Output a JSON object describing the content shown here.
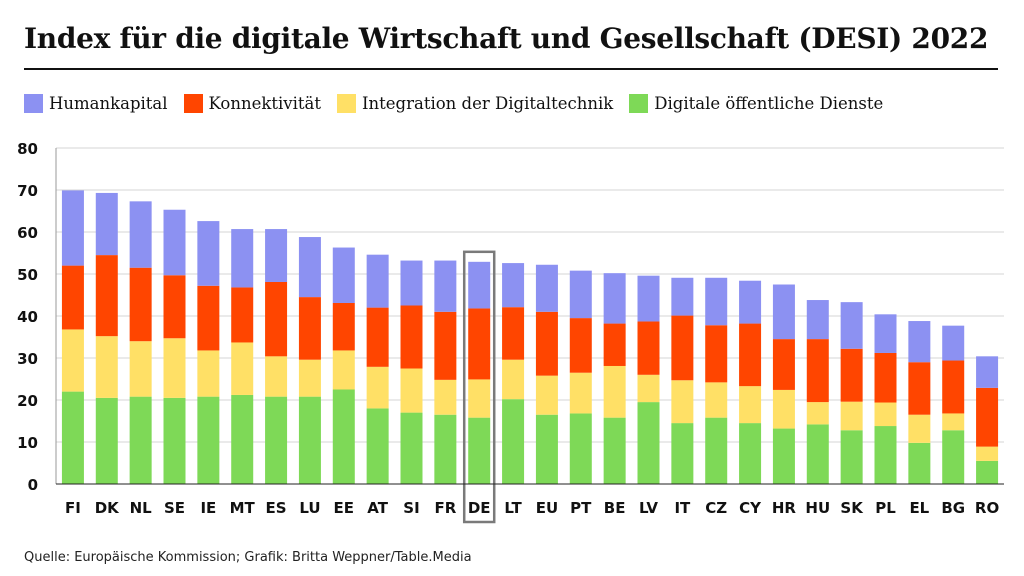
{
  "chart_data": {
    "type": "bar",
    "stacked": true,
    "title": "Index für die digitale Wirtschaft und Gesellschaft (DESI) 2022",
    "xlabel": "",
    "ylabel": "",
    "ylim": [
      0,
      80
    ],
    "yticks": [
      0,
      10,
      20,
      30,
      40,
      50,
      60,
      70,
      80
    ],
    "grid": true,
    "legend_position": "top",
    "highlight_category": "DE",
    "categories": [
      "FI",
      "DK",
      "NL",
      "SE",
      "IE",
      "MT",
      "ES",
      "LU",
      "EE",
      "AT",
      "SI",
      "FR",
      "DE",
      "LT",
      "EU",
      "PT",
      "BE",
      "LV",
      "IT",
      "CZ",
      "CY",
      "HR",
      "HU",
      "SK",
      "PL",
      "EL",
      "BG",
      "RO"
    ],
    "series": [
      {
        "name": "Digitale öffentliche Dienste",
        "color": "#7ed957",
        "values": [
          22.0,
          20.5,
          20.8,
          20.5,
          20.8,
          21.2,
          20.8,
          20.8,
          22.5,
          18.0,
          17.0,
          16.5,
          15.8,
          20.2,
          16.5,
          16.8,
          15.8,
          19.5,
          14.5,
          15.8,
          14.5,
          13.2,
          14.2,
          12.8,
          13.8,
          9.8,
          12.8,
          5.5
        ]
      },
      {
        "name": "Integration der Digitaltechnik",
        "color": "#ffe066",
        "values": [
          14.8,
          14.7,
          13.2,
          14.2,
          11.0,
          12.5,
          9.6,
          8.8,
          9.3,
          9.9,
          10.5,
          8.3,
          9.1,
          9.4,
          9.3,
          9.7,
          12.3,
          6.5,
          10.2,
          8.4,
          8.8,
          9.2,
          5.3,
          6.8,
          5.6,
          6.7,
          4.0,
          3.4
        ]
      },
      {
        "name": "Konnektivität",
        "color": "#ff4500",
        "values": [
          15.2,
          19.3,
          17.5,
          15.0,
          15.4,
          13.1,
          17.7,
          14.9,
          11.3,
          14.1,
          15.0,
          16.2,
          16.9,
          12.5,
          15.2,
          13.0,
          10.1,
          12.7,
          15.4,
          13.6,
          14.9,
          12.1,
          15.0,
          12.6,
          11.8,
          12.5,
          12.6,
          14.0
        ]
      },
      {
        "name": "Humankapital",
        "color": "#8c91f2",
        "values": [
          17.9,
          14.8,
          15.8,
          15.6,
          15.4,
          13.9,
          12.6,
          14.3,
          13.2,
          12.6,
          10.7,
          12.2,
          11.1,
          10.5,
          11.2,
          11.3,
          12.0,
          10.9,
          9.0,
          11.3,
          10.2,
          13.0,
          9.3,
          11.1,
          9.2,
          9.8,
          8.3,
          7.5
        ]
      }
    ]
  },
  "legend": {
    "items": [
      {
        "label": "Humankapital",
        "color": "#8c91f2"
      },
      {
        "label": "Konnektivität",
        "color": "#ff4500"
      },
      {
        "label": "Integration der Digitaltechnik",
        "color": "#ffe066"
      },
      {
        "label": "Digitale öffentliche Dienste",
        "color": "#7ed957"
      }
    ]
  },
  "source": "Quelle: Europäische Kommission; Grafik: Britta Weppner/Table.Media"
}
